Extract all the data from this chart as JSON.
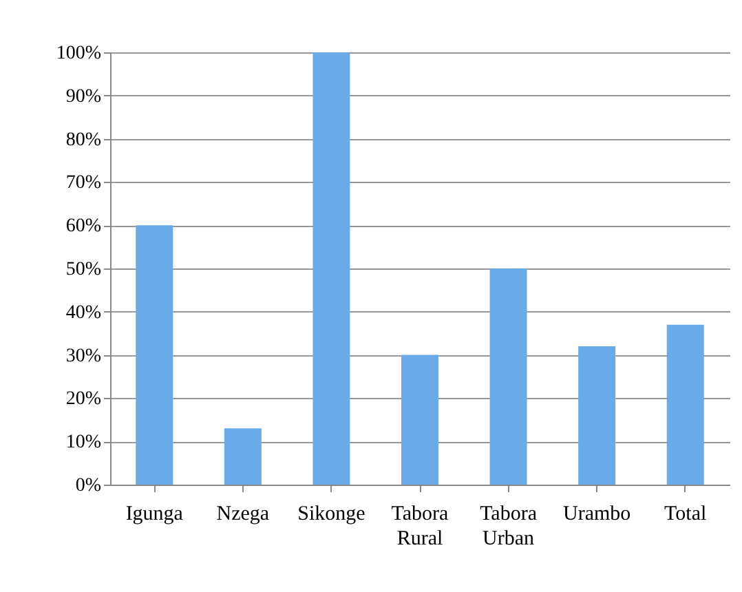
{
  "chart_data": {
    "type": "bar",
    "categories": [
      "Igunga",
      "Nzega",
      "Sikonge",
      "Tabora Rural",
      "Tabora Urban",
      "Urambo",
      "Total"
    ],
    "values": [
      60,
      13,
      100,
      30,
      50,
      32,
      37
    ],
    "color": "#6aaae8",
    "ylim": [
      0,
      100
    ],
    "yticks": [
      {
        "value": 0,
        "label": "0%"
      },
      {
        "value": 10,
        "label": "10%"
      },
      {
        "value": 20,
        "label": "20%"
      },
      {
        "value": 30,
        "label": "30%"
      },
      {
        "value": 40,
        "label": "40%"
      },
      {
        "value": 50,
        "label": "50%"
      },
      {
        "value": 60,
        "label": "60%"
      },
      {
        "value": 70,
        "label": "70%"
      },
      {
        "value": 80,
        "label": "80%"
      },
      {
        "value": 90,
        "label": "90%"
      },
      {
        "value": 100,
        "label": "100%"
      }
    ],
    "grid": "y"
  }
}
